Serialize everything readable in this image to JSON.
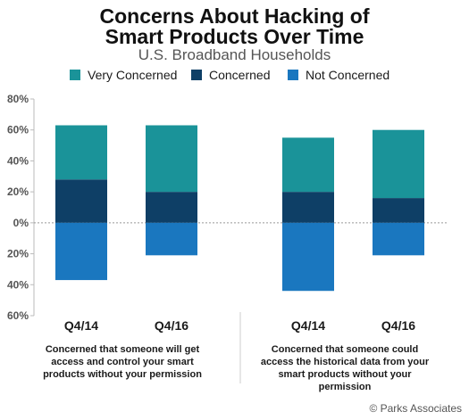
{
  "title_lines": [
    "Concerns About Hacking of",
    "Smart Products Over Time"
  ],
  "subtitle": "U.S. Broadband Households",
  "credit": "© Parks Associates",
  "colors": {
    "very_concerned": "#1a9399",
    "concerned": "#0e3f66",
    "not_concerned": "#1a77bf",
    "axis": "#bbbbbb",
    "tick_text": "#555555"
  },
  "chart_data": {
    "type": "bar",
    "stacked": true,
    "diverging": true,
    "y_tick_labels": [
      "80%",
      "60%",
      "40%",
      "20%",
      "0%",
      "20%",
      "40%",
      "60%"
    ],
    "y_tick_values": [
      80,
      60,
      40,
      20,
      0,
      -20,
      -40,
      -60
    ],
    "ylim": [
      -60,
      80
    ],
    "legend_position": "top",
    "groups": [
      {
        "caption": "Concerned that someone will get access and control your smart products without your permission",
        "categories": [
          "Q4/14",
          "Q4/16"
        ]
      },
      {
        "caption": "Concerned that someone could access the historical data from your smart products without your permission",
        "categories": [
          "Q4/14",
          "Q4/16"
        ]
      }
    ],
    "categories": [
      "Q4/14",
      "Q4/16",
      "Q4/14",
      "Q4/16"
    ],
    "series": [
      {
        "name": "Very Concerned",
        "key": "very_concerned",
        "values": [
          35,
          43,
          35,
          44
        ]
      },
      {
        "name": "Concerned",
        "key": "concerned",
        "values": [
          28,
          20,
          20,
          16
        ]
      },
      {
        "name": "Not Concerned",
        "key": "not_concerned",
        "values": [
          -37,
          -21,
          -44,
          -21
        ]
      }
    ]
  }
}
